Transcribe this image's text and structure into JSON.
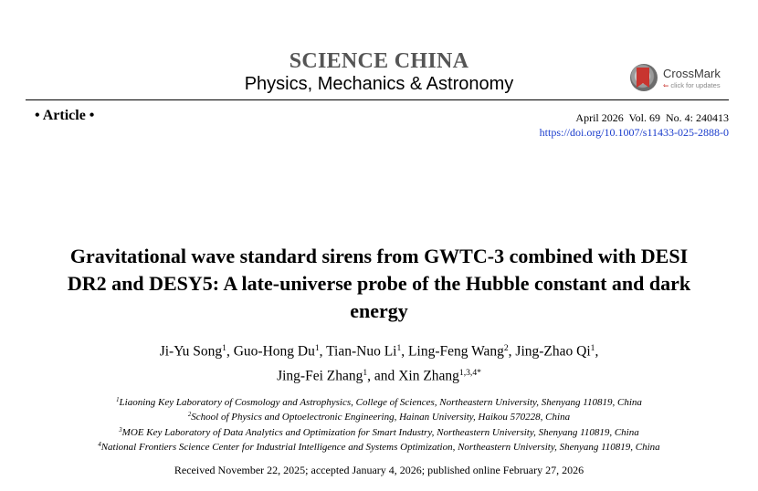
{
  "header": {
    "journal": "SCIENCE CHINA",
    "subjournal": "Physics, Mechanics & Astronomy",
    "crossmark": {
      "title": "CrossMark",
      "subtitle": "click for updates",
      "icon": "crossmark-icon"
    }
  },
  "meta": {
    "article_tag": "• Article •",
    "pub_info": "April 2026  Vol. 69  No. 4: 240413",
    "doi": "https://doi.org/10.1007/s11433-025-2888-0"
  },
  "title_lines": [
    "Gravitational wave standard sirens from GWTC-3 combined with DESI",
    "DR2 and DESY5: A late-universe probe of the Hubble constant and dark",
    "energy"
  ],
  "authors": [
    {
      "name": "Ji-Yu Song",
      "sup": "1",
      "sep": ", "
    },
    {
      "name": "Guo-Hong Du",
      "sup": "1",
      "sep": ", "
    },
    {
      "name": "Tian-Nuo Li",
      "sup": "1",
      "sep": ", "
    },
    {
      "name": "Ling-Feng Wang",
      "sup": "2",
      "sep": ", "
    },
    {
      "name": "Jing-Zhao Qi",
      "sup": "1",
      "sep": ","
    },
    {
      "name": "Jing-Fei Zhang",
      "sup": "1",
      "sep": ", and "
    },
    {
      "name": "Xin Zhang",
      "sup": "1,3,4*",
      "sep": ""
    }
  ],
  "affiliations": [
    {
      "num": "1",
      "text": "Liaoning Key Laboratory of Cosmology and Astrophysics, College of Sciences, Northeastern University, Shenyang 110819, China"
    },
    {
      "num": "2",
      "text": "School of Physics and Optoelectronic Engineering, Hainan University, Haikou 570228, China"
    },
    {
      "num": "3",
      "text": "MOE Key Laboratory of Data Analytics and Optimization for Smart Industry, Northeastern University, Shenyang 110819, China"
    },
    {
      "num": "4",
      "text": "National Frontiers Science Center for Industrial Intelligence and Systems Optimization, Northeastern University, Shenyang 110819, China"
    }
  ],
  "received": "Received November 22, 2025; accepted January 4, 2026; published online February 27, 2026",
  "colors": {
    "journal": "#555555",
    "doi_link": "#1a3ccc",
    "crossmark_red": "#c8352f"
  }
}
